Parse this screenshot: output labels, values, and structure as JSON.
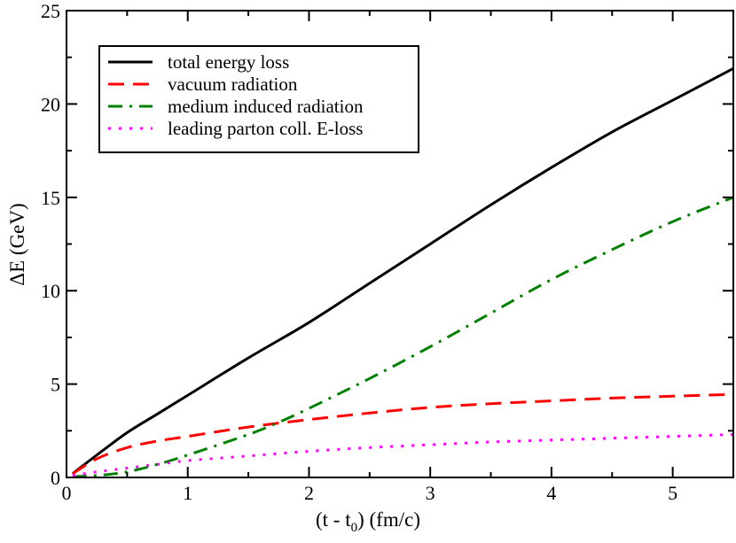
{
  "chart_data": {
    "type": "line",
    "title": "",
    "xlabel": "(t - t",
    "xlabel_sub": "0",
    "xlabel_tail": ") (fm/c)",
    "ylabel": "ΔE (GeV)",
    "xlim": [
      0,
      5.5
    ],
    "ylim": [
      0,
      25
    ],
    "xticks": [
      0,
      1,
      2,
      3,
      4,
      5
    ],
    "yticks": [
      0,
      5,
      10,
      15,
      20,
      25
    ],
    "xtick_labels": [
      "0",
      "1",
      "2",
      "3",
      "4",
      "5"
    ],
    "ytick_labels": [
      "0",
      "5",
      "10",
      "15",
      "20",
      "25"
    ],
    "grid": false,
    "legend_position": "top-left",
    "series": [
      {
        "name": "total energy loss",
        "color": "#000000",
        "style": "solid",
        "x": [
          0.05,
          0.25,
          0.5,
          0.75,
          1,
          1.5,
          2,
          2.5,
          3,
          3.5,
          4,
          4.5,
          5,
          5.5
        ],
        "y": [
          0.2,
          1.2,
          2.4,
          3.4,
          4.4,
          6.4,
          8.3,
          10.4,
          12.5,
          14.6,
          16.6,
          18.5,
          20.2,
          21.9
        ]
      },
      {
        "name": "vacuum radiation",
        "color": "#ff0000",
        "style": "dashed",
        "x": [
          0.05,
          0.25,
          0.5,
          0.75,
          1,
          1.5,
          2,
          2.5,
          3,
          3.5,
          4,
          4.5,
          5,
          5.5
        ],
        "y": [
          0.2,
          1.0,
          1.6,
          1.95,
          2.2,
          2.7,
          3.1,
          3.45,
          3.75,
          3.95,
          4.1,
          4.25,
          4.35,
          4.45
        ]
      },
      {
        "name": "medium induced radiation",
        "color": "#008000",
        "style": "dashdot",
        "x": [
          0.05,
          0.25,
          0.5,
          0.75,
          1,
          1.5,
          1.75,
          2,
          2.5,
          3,
          3.5,
          4,
          4.5,
          5,
          5.5
        ],
        "y": [
          0.05,
          0.1,
          0.3,
          0.7,
          1.2,
          2.3,
          2.95,
          3.7,
          5.3,
          7.0,
          8.8,
          10.6,
          12.2,
          13.7,
          15.0
        ]
      },
      {
        "name": "leading parton coll. E-loss",
        "color": "#ff00ff",
        "style": "dotted",
        "x": [
          0.05,
          0.25,
          0.5,
          0.75,
          1,
          1.5,
          2,
          2.5,
          3,
          3.5,
          4,
          4.5,
          5,
          5.5
        ],
        "y": [
          0.1,
          0.3,
          0.5,
          0.7,
          0.9,
          1.15,
          1.4,
          1.6,
          1.75,
          1.9,
          2.0,
          2.1,
          2.2,
          2.3
        ]
      }
    ]
  }
}
